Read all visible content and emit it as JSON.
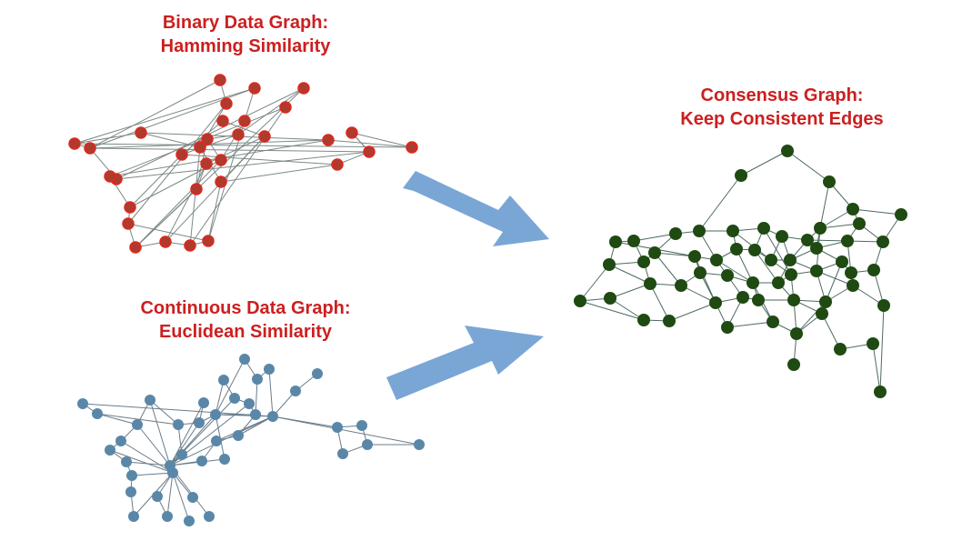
{
  "colors": {
    "title_text": "#cc1f1f",
    "binary_node": "#b03a2e",
    "binary_node_outline": "#e0281e",
    "binary_edge": "#7c8a86",
    "continuous_node": "#5a87a8",
    "continuous_edge": "#6a7c8a",
    "consensus_node": "#1f4a12",
    "consensus_edge": "#4e6a62",
    "arrow_fill": "#7aa6d6"
  },
  "titles": {
    "binary": {
      "line1": "Binary Data Graph:",
      "line2": "Hamming Similarity"
    },
    "continuous": {
      "line1": "Continuous Data Graph:",
      "line2": "Euclidean Similarity"
    },
    "consensus": {
      "line1": "Consensus Graph:",
      "line2": "Keep Consistent Edges"
    }
  }
}
